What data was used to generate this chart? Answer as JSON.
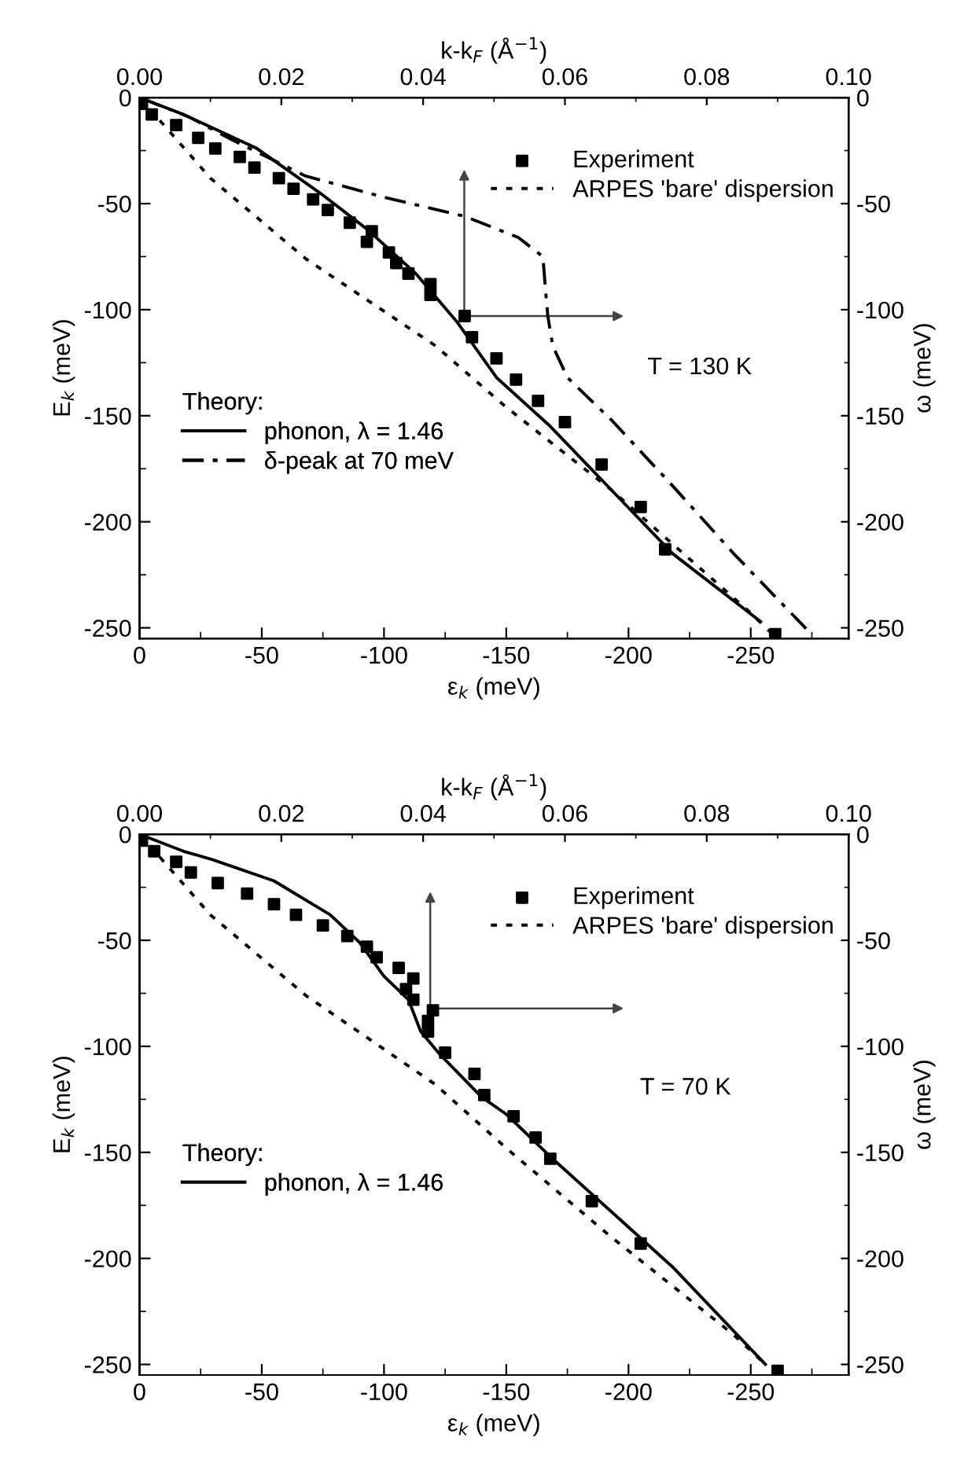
{
  "chart_data": [
    {
      "type": "line",
      "xlabel": "ε$_{k}$ (meV)",
      "ylabel": "E$_{k}$ (meV)",
      "y2label": "ω (meV)",
      "x2label": "k-k$_{F}$ (Å$^{−1}$)",
      "xlim": [
        0,
        -290
      ],
      "xticks": [
        0,
        -50,
        -100,
        -150,
        -200,
        -250
      ],
      "ylim": [
        -255,
        0
      ],
      "yticks": [
        0,
        -50,
        -100,
        -150,
        -200,
        -250
      ],
      "y2lim": [
        -255,
        0
      ],
      "y2ticks": [
        0,
        -50,
        -100,
        -150,
        -200,
        -250
      ],
      "x2lim": [
        0,
        0.1
      ],
      "x2ticks": [
        {
          "value": 0,
          "label": "0.00"
        },
        {
          "value": 0.02,
          "label": "0.02"
        },
        {
          "value": 0.04,
          "label": "0.04"
        },
        {
          "value": 0.06,
          "label": "0.06"
        },
        {
          "value": 0.08,
          "label": "0.08"
        },
        {
          "value": 0.1,
          "label": "0.10"
        }
      ],
      "legend": "top right",
      "legend_title": "Theory:",
      "grid": false,
      "annotations": [
        "T = 130 K"
      ],
      "series": [
        {
          "name": "Experiment",
          "type": "scatter",
          "marker": "square",
          "color": "#000000",
          "x": [
            -1,
            -5,
            -15,
            -24,
            -31,
            -41,
            -47,
            -57,
            -63,
            -71,
            -77,
            -86,
            -95,
            -93,
            -102,
            -105,
            -110,
            -119,
            -119,
            -133,
            -136,
            -146,
            -154,
            -163,
            -174,
            -189,
            -205,
            -215,
            -260
          ],
          "values": [
            -3,
            -8,
            -13,
            -19,
            -24,
            -28,
            -33,
            -38,
            -43,
            -48,
            -53,
            -59,
            -63,
            -68,
            -73,
            -78,
            -83,
            -88,
            -93,
            -103,
            -113,
            -123,
            -133,
            -143,
            -153,
            -173,
            -193,
            -213,
            -253
          ]
        },
        {
          "name": "ARPES 'bare' dispersion",
          "line_style": "dotted",
          "color": "#000000",
          "x": [
            0,
            -10,
            -29,
            -68,
            -121,
            -150,
            -193,
            -250,
            -258
          ],
          "values": [
            0,
            -13,
            -38,
            -76,
            -117,
            -146,
            -185,
            -243,
            -252
          ]
        },
        {
          "name": "phonon, λ = 1.46",
          "line_style": "solid",
          "color": "#000000",
          "x": [
            0,
            -18,
            -48,
            -75,
            -93,
            -113,
            -130,
            -146,
            -168,
            -193,
            -218,
            -254
          ],
          "values": [
            0,
            -8,
            -24,
            -46,
            -62,
            -83,
            -106,
            -132,
            -155,
            -185,
            -215,
            -247
          ]
        },
        {
          "name": "δ-peak at 70 meV",
          "line_style": "dashdot",
          "color": "#000000",
          "x": [
            0,
            -20,
            -38,
            -68,
            -100,
            -133,
            -155,
            -165,
            -166,
            -167,
            -169,
            -175,
            -193,
            -218,
            -243,
            -274
          ],
          "values": [
            0,
            -9,
            -20,
            -37,
            -47,
            -56,
            -66,
            -75,
            -90,
            -103,
            -117,
            -132,
            -152,
            -183,
            -215,
            -252
          ]
        }
      ]
    },
    {
      "type": "line",
      "xlabel": "ε$_{k}$ (meV)",
      "ylabel": "E$_{k}$ (meV)",
      "y2label": "ω (meV)",
      "x2label": "k-k$_{F}$ (Å$^{−1}$)",
      "xlim": [
        0,
        -290
      ],
      "xticks": [
        0,
        -50,
        -100,
        -150,
        -200,
        -250
      ],
      "ylim": [
        -255,
        0
      ],
      "yticks": [
        0,
        -50,
        -100,
        -150,
        -200,
        -250
      ],
      "y2lim": [
        -255,
        0
      ],
      "y2ticks": [
        0,
        -50,
        -100,
        -150,
        -200,
        -250
      ],
      "x2lim": [
        0,
        0.1
      ],
      "x2ticks": [
        {
          "value": 0,
          "label": "0.00"
        },
        {
          "value": 0.02,
          "label": "0.02"
        },
        {
          "value": 0.04,
          "label": "0.04"
        },
        {
          "value": 0.06,
          "label": "0.06"
        },
        {
          "value": 0.08,
          "label": "0.08"
        },
        {
          "value": 0.1,
          "label": "0.10"
        }
      ],
      "legend": "top right",
      "legend_title": "Theory:",
      "grid": false,
      "annotations": [
        "T = 70 K"
      ],
      "series": [
        {
          "name": "Experiment",
          "type": "scatter",
          "marker": "square",
          "color": "#000000",
          "x": [
            -1,
            -6,
            -15,
            -21,
            -32,
            -44,
            -55,
            -64,
            -75,
            -85,
            -93,
            -97,
            -106,
            -112,
            -109,
            -112,
            -120,
            -118,
            -118,
            -125,
            -137,
            -141,
            -153,
            -162,
            -168,
            -185,
            -205,
            -261
          ],
          "values": [
            -3,
            -8,
            -13,
            -18,
            -23,
            -28,
            -33,
            -38,
            -43,
            -48,
            -53,
            -58,
            -63,
            -68,
            -73,
            -78,
            -83,
            -88,
            -93,
            -103,
            -113,
            -123,
            -133,
            -143,
            -153,
            -173,
            -193,
            -253
          ]
        },
        {
          "name": "ARPES 'bare' dispersion",
          "line_style": "dotted",
          "color": "#000000",
          "x": [
            0,
            -10,
            -29,
            -68,
            -121,
            -150,
            -193,
            -243,
            -256
          ],
          "values": [
            0,
            -13,
            -38,
            -76,
            -118,
            -148,
            -190,
            -236,
            -250
          ]
        },
        {
          "name": "phonon, λ = 1.46",
          "line_style": "solid",
          "color": "#000000",
          "x": [
            0,
            -18,
            -30,
            -55,
            -78,
            -90,
            -100,
            -110,
            -115,
            -123,
            -140,
            -150,
            -168,
            -193,
            -218,
            -256
          ],
          "values": [
            0,
            -8,
            -12,
            -22,
            -38,
            -51,
            -67,
            -78,
            -93,
            -104,
            -124,
            -132,
            -152,
            -178,
            -204,
            -250
          ]
        }
      ]
    }
  ]
}
